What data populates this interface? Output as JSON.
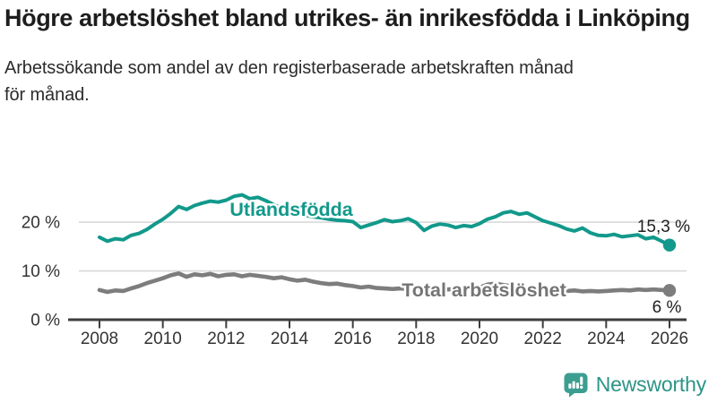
{
  "chart_data": {
    "type": "line",
    "title": "Högre arbetslöshet bland utrikes- än inrikesfödda i Linköping",
    "subtitle": "Arbetssökande som andel av den registerbaserade arbetskraften månad för månad.",
    "x_axis": {
      "tick_labels": [
        "2008",
        "2010",
        "2012",
        "2014",
        "2016",
        "2018",
        "2020",
        "2022",
        "2024",
        "2026"
      ],
      "range": [
        2008,
        2026
      ]
    },
    "y_axis": {
      "ticks": [
        {
          "value": 0,
          "label": "0 %"
        },
        {
          "value": 10,
          "label": "10 %"
        },
        {
          "value": 20,
          "label": "20 %"
        }
      ],
      "range": [
        0,
        27
      ]
    },
    "grid": "horizontal-only",
    "legend": "inline-labels",
    "style": {
      "grid_color": "#d8d8d8",
      "axis_color": "#3d3d3d",
      "tick_text_color": "#333333",
      "annotation_color": "#1f1f1f"
    },
    "series": [
      {
        "name": "Utlandsfödda",
        "color": "#12998b",
        "label_color": "#12998b",
        "end_annotation": "15,3 %",
        "end_value": 15.3,
        "points": [
          [
            2008,
            16.9
          ],
          [
            2008.25,
            16.1
          ],
          [
            2008.5,
            16.6
          ],
          [
            2008.75,
            16.4
          ],
          [
            2009,
            17.3
          ],
          [
            2009.25,
            17.7
          ],
          [
            2009.5,
            18.5
          ],
          [
            2009.75,
            19.6
          ],
          [
            2010,
            20.6
          ],
          [
            2010.25,
            21.8
          ],
          [
            2010.5,
            23.2
          ],
          [
            2010.75,
            22.6
          ],
          [
            2011,
            23.4
          ],
          [
            2011.25,
            23.9
          ],
          [
            2011.5,
            24.3
          ],
          [
            2011.75,
            24.1
          ],
          [
            2012,
            24.5
          ],
          [
            2012.25,
            25.3
          ],
          [
            2012.5,
            25.6
          ],
          [
            2012.75,
            24.8
          ],
          [
            2013,
            25.1
          ],
          [
            2013.25,
            24.4
          ],
          [
            2013.5,
            23.6
          ],
          [
            2013.75,
            22.9
          ],
          [
            2014,
            22.3
          ],
          [
            2014.25,
            21.8
          ],
          [
            2014.5,
            21.4
          ],
          [
            2014.75,
            21.1
          ],
          [
            2015,
            20.9
          ],
          [
            2015.25,
            20.6
          ],
          [
            2015.5,
            20.4
          ],
          [
            2015.75,
            20.3
          ],
          [
            2016,
            20.1
          ],
          [
            2016.25,
            18.9
          ],
          [
            2016.5,
            19.4
          ],
          [
            2016.75,
            19.9
          ],
          [
            2017,
            20.5
          ],
          [
            2017.25,
            20.1
          ],
          [
            2017.5,
            20.3
          ],
          [
            2017.75,
            20.7
          ],
          [
            2018,
            19.9
          ],
          [
            2018.25,
            18.3
          ],
          [
            2018.5,
            19.2
          ],
          [
            2018.75,
            19.6
          ],
          [
            2019,
            19.4
          ],
          [
            2019.25,
            18.9
          ],
          [
            2019.5,
            19.3
          ],
          [
            2019.75,
            19.1
          ],
          [
            2020,
            19.7
          ],
          [
            2020.25,
            20.6
          ],
          [
            2020.5,
            21.1
          ],
          [
            2020.75,
            21.9
          ],
          [
            2021,
            22.2
          ],
          [
            2021.25,
            21.6
          ],
          [
            2021.5,
            21.9
          ],
          [
            2021.75,
            21.1
          ],
          [
            2022,
            20.3
          ],
          [
            2022.25,
            19.8
          ],
          [
            2022.5,
            19.3
          ],
          [
            2022.75,
            18.6
          ],
          [
            2023,
            18.2
          ],
          [
            2023.25,
            18.8
          ],
          [
            2023.5,
            17.8
          ],
          [
            2023.75,
            17.3
          ],
          [
            2024,
            17.2
          ],
          [
            2024.25,
            17.5
          ],
          [
            2024.5,
            17.0
          ],
          [
            2024.75,
            17.2
          ],
          [
            2025,
            17.4
          ],
          [
            2025.25,
            16.6
          ],
          [
            2025.5,
            16.9
          ],
          [
            2025.75,
            16.1
          ],
          [
            2026,
            15.3
          ]
        ]
      },
      {
        "name": "Total arbetslöshet",
        "color": "#7d7d7d",
        "label_color": "#757575",
        "end_annotation": "6 %",
        "end_value": 6.0,
        "points": [
          [
            2008,
            6.1
          ],
          [
            2008.25,
            5.7
          ],
          [
            2008.5,
            6.0
          ],
          [
            2008.75,
            5.9
          ],
          [
            2009,
            6.4
          ],
          [
            2009.25,
            6.9
          ],
          [
            2009.5,
            7.5
          ],
          [
            2009.75,
            8.0
          ],
          [
            2010,
            8.5
          ],
          [
            2010.25,
            9.1
          ],
          [
            2010.5,
            9.5
          ],
          [
            2010.75,
            8.8
          ],
          [
            2011,
            9.3
          ],
          [
            2011.25,
            9.1
          ],
          [
            2011.5,
            9.4
          ],
          [
            2011.75,
            8.9
          ],
          [
            2012,
            9.2
          ],
          [
            2012.25,
            9.3
          ],
          [
            2012.5,
            8.9
          ],
          [
            2012.75,
            9.2
          ],
          [
            2013,
            9.0
          ],
          [
            2013.25,
            8.8
          ],
          [
            2013.5,
            8.5
          ],
          [
            2013.75,
            8.7
          ],
          [
            2014,
            8.3
          ],
          [
            2014.25,
            8.0
          ],
          [
            2014.5,
            8.2
          ],
          [
            2014.75,
            7.8
          ],
          [
            2015,
            7.5
          ],
          [
            2015.25,
            7.3
          ],
          [
            2015.5,
            7.4
          ],
          [
            2015.75,
            7.1
          ],
          [
            2016,
            6.9
          ],
          [
            2016.25,
            6.6
          ],
          [
            2016.5,
            6.8
          ],
          [
            2016.75,
            6.5
          ],
          [
            2017,
            6.4
          ],
          [
            2017.25,
            6.3
          ],
          [
            2017.5,
            6.4
          ],
          [
            2017.75,
            6.3
          ],
          [
            2018,
            6.2
          ],
          [
            2018.25,
            6.1
          ],
          [
            2018.5,
            6.2
          ],
          [
            2018.75,
            6.1
          ],
          [
            2019,
            6.2
          ],
          [
            2019.25,
            6.3
          ],
          [
            2019.5,
            6.4
          ],
          [
            2019.75,
            6.5
          ],
          [
            2020,
            6.6
          ],
          [
            2020.25,
            7.2
          ],
          [
            2020.5,
            7.4
          ],
          [
            2020.75,
            7.1
          ],
          [
            2021,
            6.9
          ],
          [
            2021.25,
            6.7
          ],
          [
            2021.5,
            6.5
          ],
          [
            2021.75,
            6.3
          ],
          [
            2022,
            6.1
          ],
          [
            2022.25,
            6.0
          ],
          [
            2022.5,
            5.9
          ],
          [
            2022.75,
            5.9
          ],
          [
            2023,
            6.0
          ],
          [
            2023.25,
            5.8
          ],
          [
            2023.5,
            5.9
          ],
          [
            2023.75,
            5.8
          ],
          [
            2024,
            5.9
          ],
          [
            2024.25,
            6.0
          ],
          [
            2024.5,
            6.1
          ],
          [
            2024.75,
            6.0
          ],
          [
            2025,
            6.2
          ],
          [
            2025.25,
            6.1
          ],
          [
            2025.5,
            6.2
          ],
          [
            2025.75,
            6.1
          ],
          [
            2026,
            6.0
          ]
        ]
      }
    ]
  },
  "footer": {
    "brand": "Newsworthy",
    "brand_color": "#2c9486",
    "logo_color": "#3b9e90",
    "logo_icon": "speech-bubble-bar-chart-icon"
  }
}
